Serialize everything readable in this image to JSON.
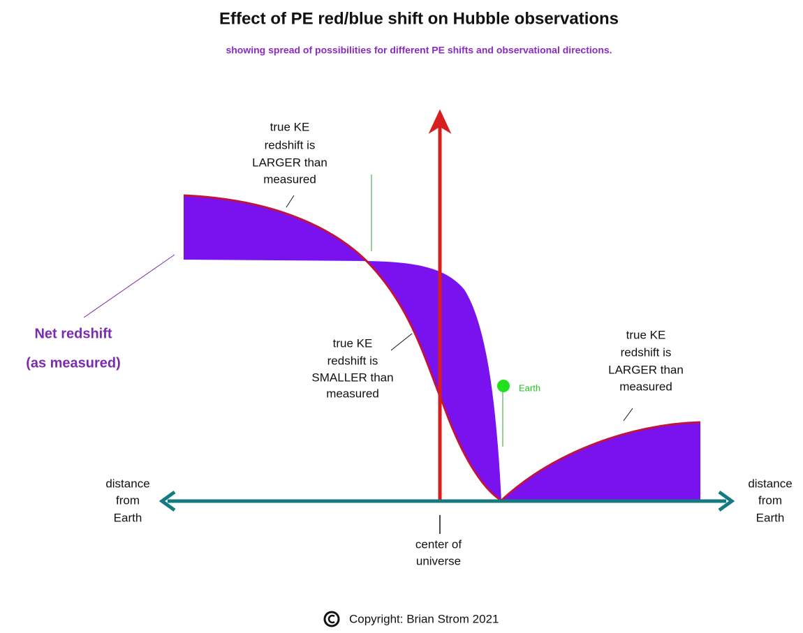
{
  "title": "Effect of PE red/blue shift on Hubble observations",
  "subtitle": "showing spread of possibilities for different PE shifts and observational directions.",
  "labels": {
    "left_larger": [
      "true KE",
      "redshift is",
      "LARGER than",
      "measured"
    ],
    "middle_smaller": [
      "true KE",
      "redshift is",
      "SMALLER than",
      "measured"
    ],
    "right_larger": [
      "true KE",
      "redshift is",
      "LARGER than",
      "measured"
    ],
    "net_redshift": [
      "Net redshift",
      "(as measured)"
    ],
    "earth": "Earth",
    "distance_left": [
      "distance",
      "from",
      "Earth"
    ],
    "distance_right": [
      "distance",
      "from",
      "Earth"
    ],
    "center": [
      "center of",
      "universe"
    ]
  },
  "copyright": "Copyright:  Brian Strom 2021"
}
